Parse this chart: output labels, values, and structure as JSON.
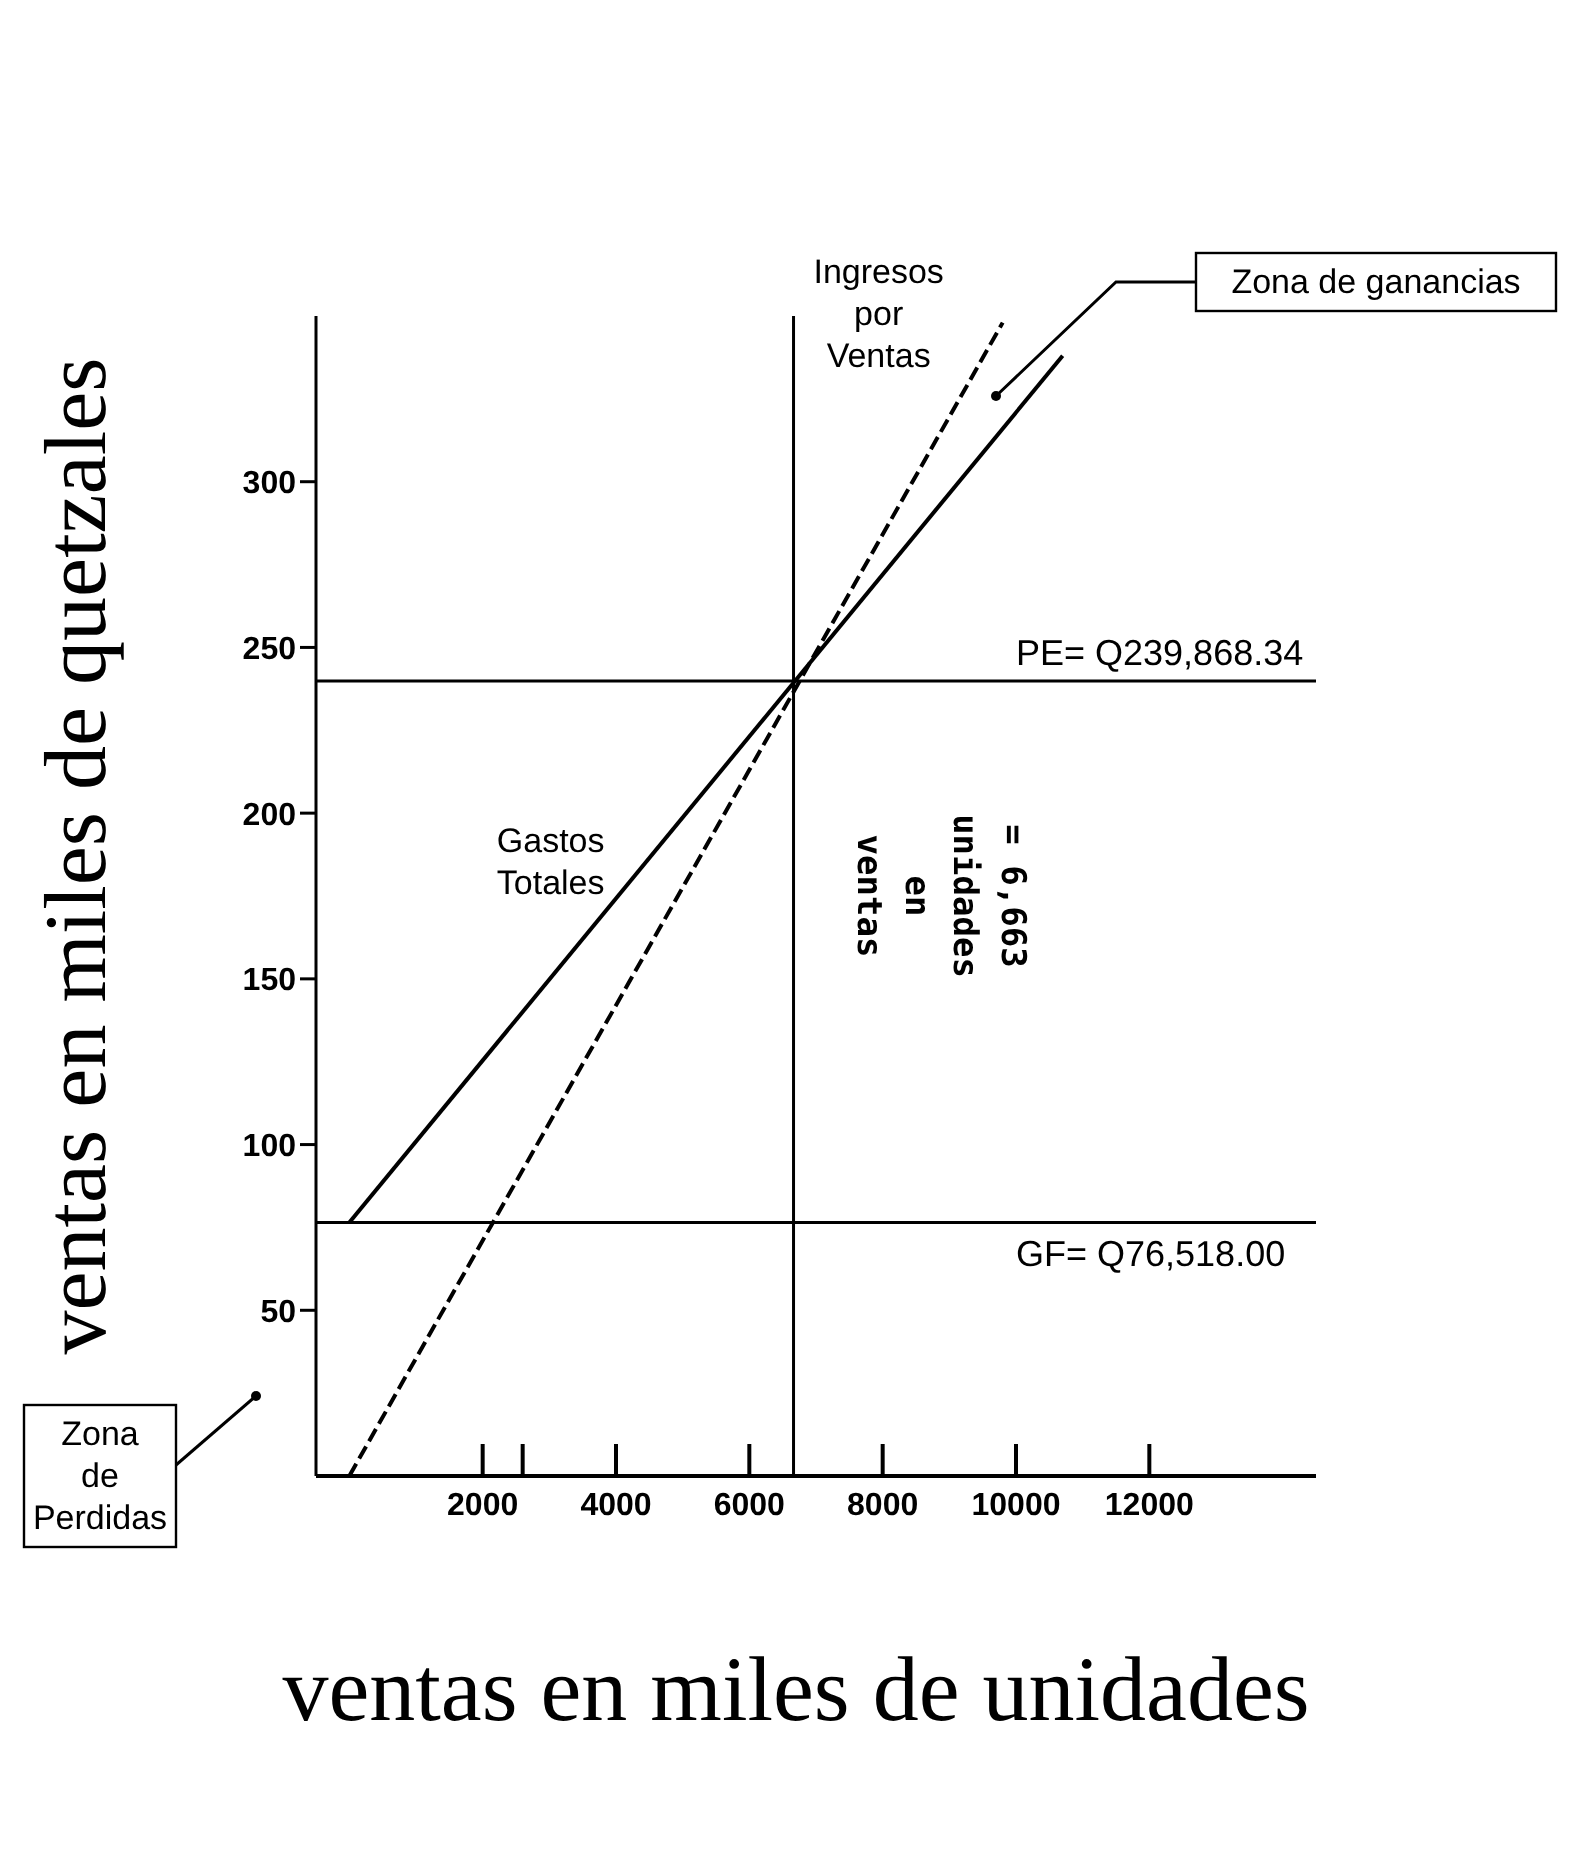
{
  "chart_data": {
    "type": "line",
    "xlabel": "ventas en miles de unidades",
    "ylabel": "ventas en miles de quetzales",
    "xlim": [
      -500,
      14500
    ],
    "ylim": [
      0,
      350
    ],
    "xticks": [
      2000,
      {
        "value": 2600,
        "label": null
      },
      4000,
      6000,
      8000,
      10000,
      12000
    ],
    "yticks": [
      50,
      100,
      150,
      200,
      250,
      300
    ],
    "marker": "none",
    "series": [
      {
        "name": "Gastos Totales",
        "color": "#000000",
        "x": [
          0,
          10700
        ],
        "values": [
          76.5,
          338
        ],
        "line_style": "solid"
      },
      {
        "name": "Ingresos por Ventas",
        "color": "#000000",
        "x": [
          0,
          9800
        ],
        "values": [
          0,
          348
        ],
        "line_style": "dashed"
      }
    ],
    "ref_lines": [
      {
        "axis": "y",
        "value": 239.87,
        "label": "PE= Q239,868.34",
        "color": "#000000"
      },
      {
        "axis": "y",
        "value": 76.518,
        "label": "GF= Q76,518.00",
        "color": "#000000"
      },
      {
        "axis": "x",
        "value": 6663,
        "label": "ventas en unidades = 6,663",
        "color": "#000000"
      }
    ],
    "annotations": [
      "Zona de ganancias",
      "Zona de Perdidas"
    ]
  }
}
